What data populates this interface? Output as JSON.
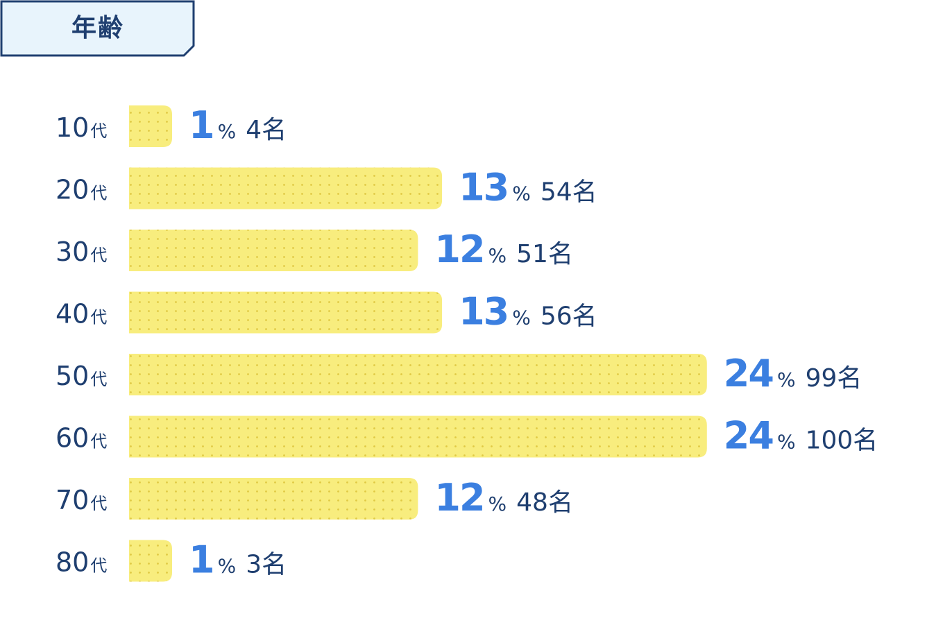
{
  "title": "年齢",
  "colors": {
    "bar_fill": "#f8ed7e",
    "bar_dot": "#e0c944",
    "label": "#1f3f70",
    "percent": "#3b7fe0",
    "badge_fill": "#e8f4fc",
    "badge_stroke": "#1f3f70"
  },
  "chart_data": {
    "type": "bar",
    "orientation": "horizontal",
    "categories": [
      "10代",
      "20代",
      "30代",
      "40代",
      "50代",
      "60代",
      "70代",
      "80代"
    ],
    "values": [
      1,
      13,
      12,
      13,
      24,
      24,
      12,
      1
    ],
    "percent_symbol": "%",
    "counts": [
      "4名",
      "54名",
      "51名",
      "56名",
      "99名",
      "100名",
      "48名",
      "3名"
    ],
    "title": "年齢",
    "xlabel": "",
    "ylabel": "",
    "grid": false,
    "legend": "none"
  }
}
